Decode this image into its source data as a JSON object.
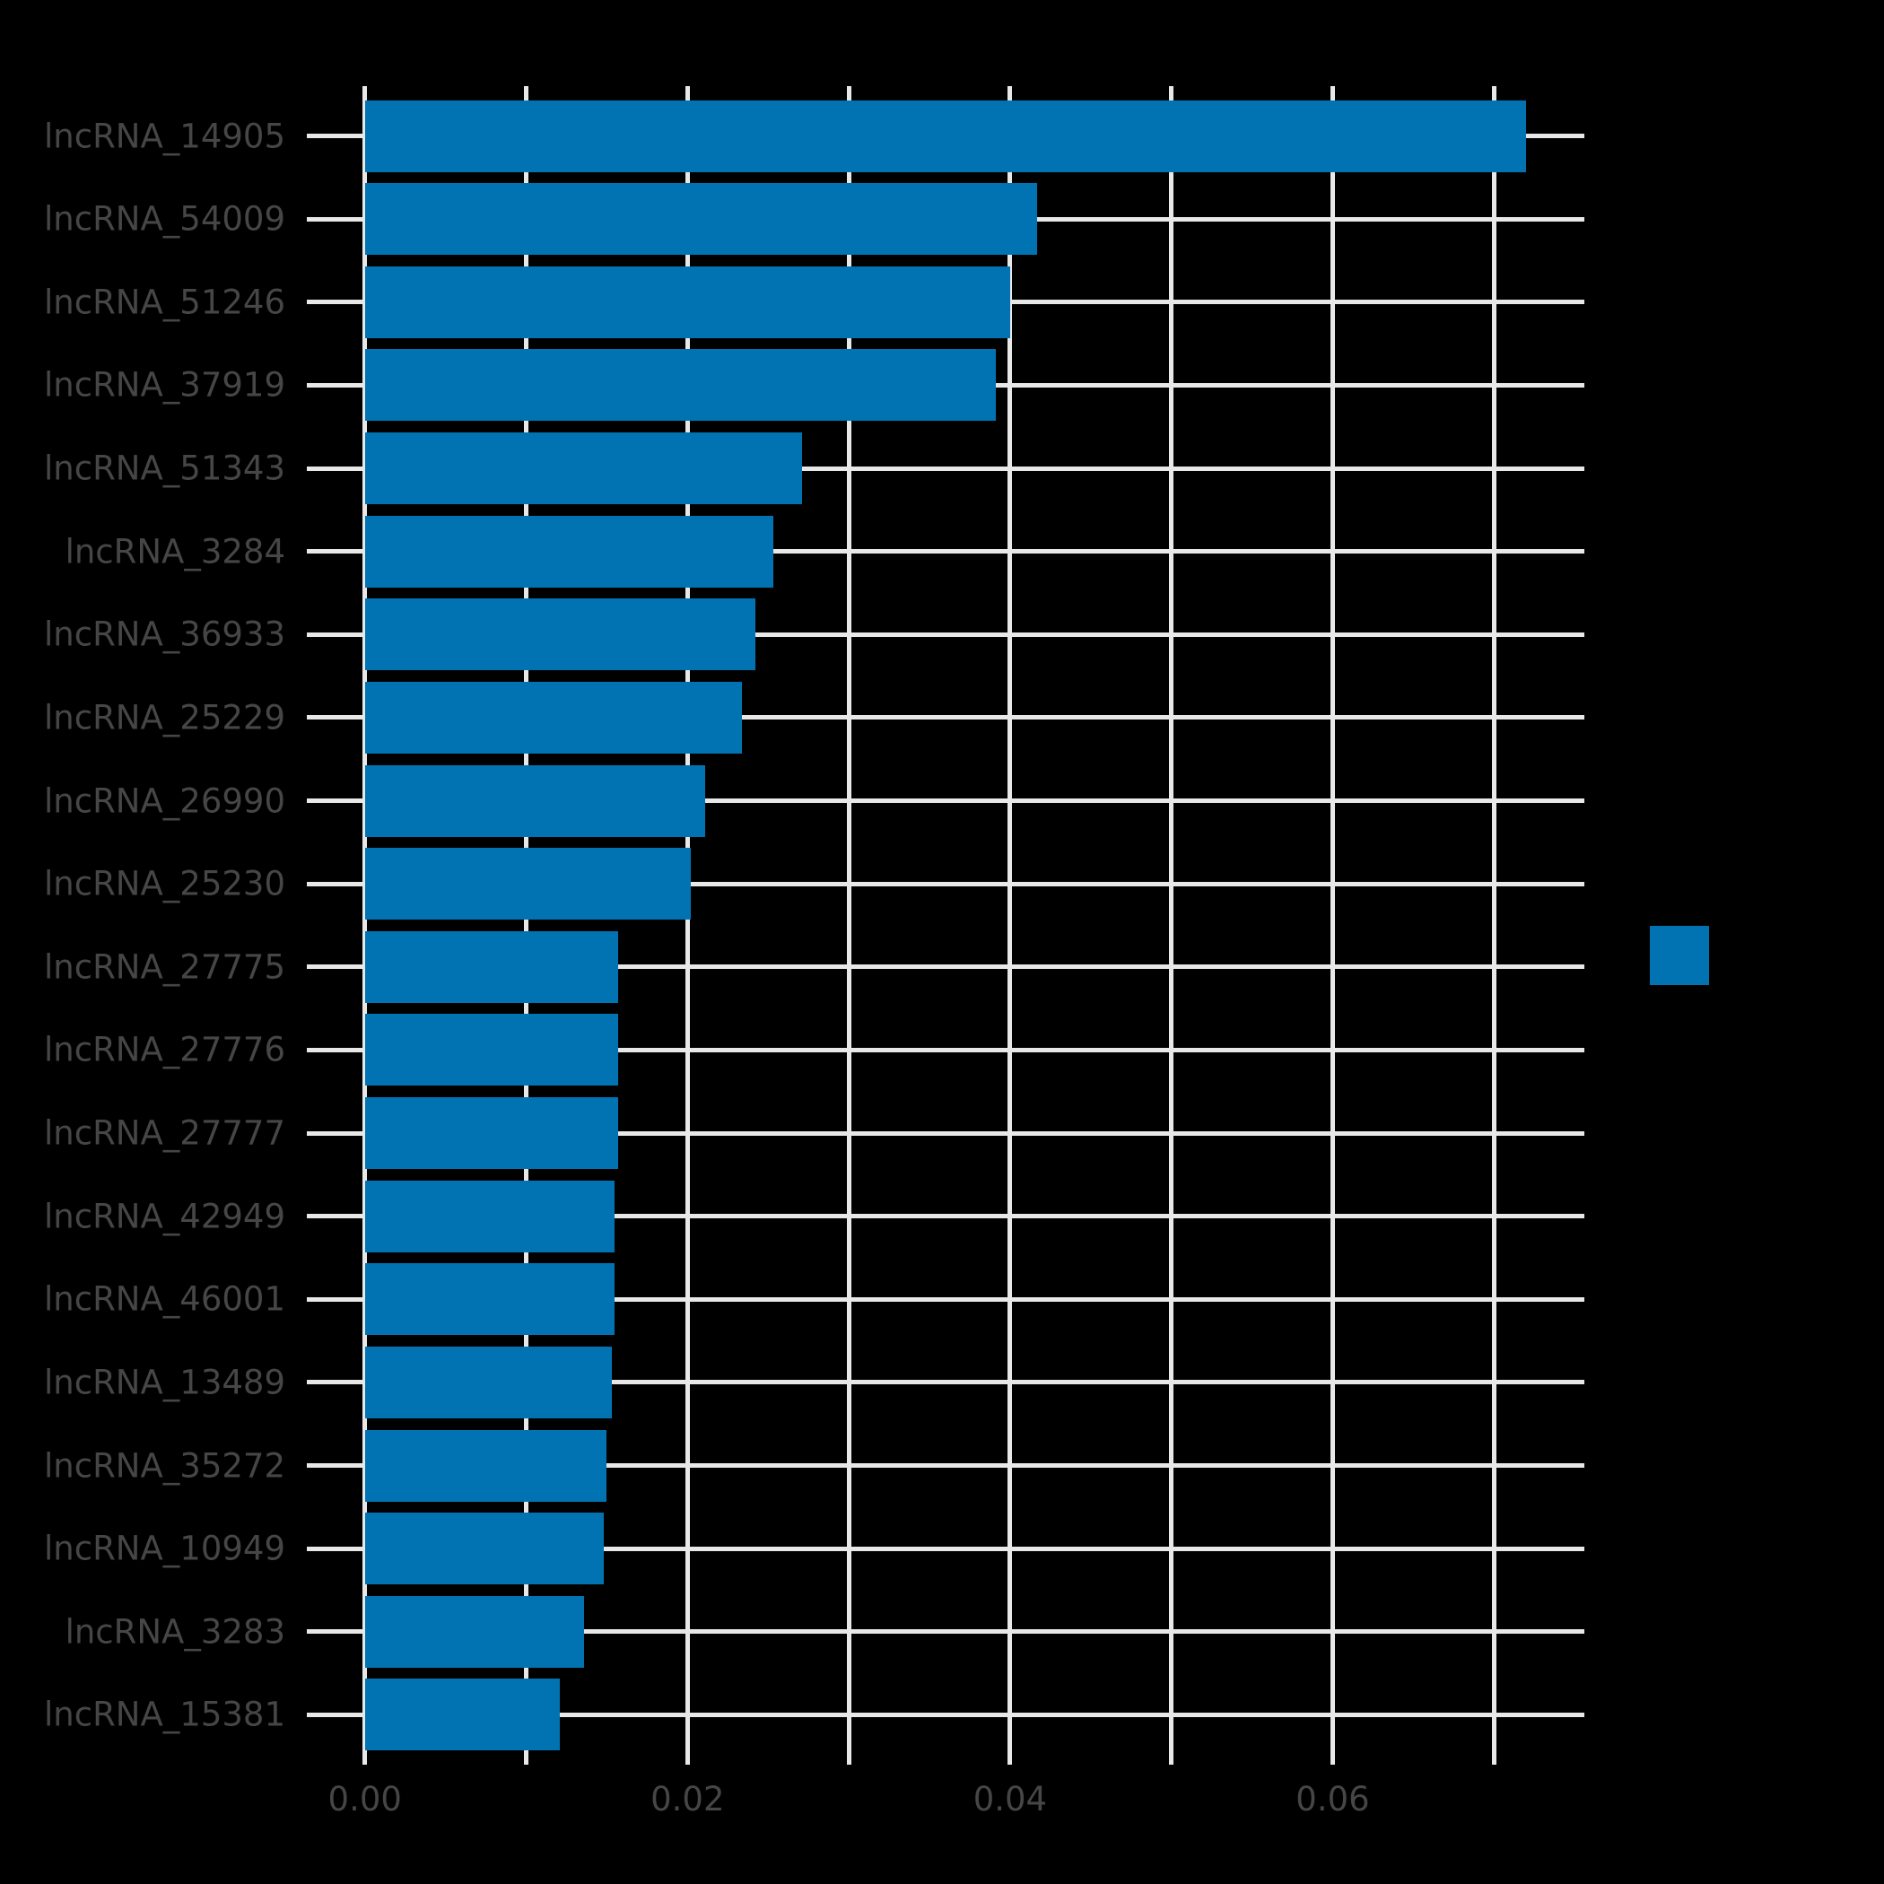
{
  "chart_data": {
    "type": "bar",
    "orientation": "horizontal",
    "title": "",
    "xlabel": "",
    "ylabel": "",
    "categories": [
      "lncRNA_14905",
      "lncRNA_54009",
      "lncRNA_51246",
      "lncRNA_37919",
      "lncRNA_51343",
      "lncRNA_3284",
      "lncRNA_36933",
      "lncRNA_25229",
      "lncRNA_26990",
      "lncRNA_25230",
      "lncRNA_27775",
      "lncRNA_27776",
      "lncRNA_27777",
      "lncRNA_42949",
      "lncRNA_46001",
      "lncRNA_13489",
      "lncRNA_35272",
      "lncRNA_10949",
      "lncRNA_3283",
      "lncRNA_15381"
    ],
    "values": [
      0.072,
      0.0417,
      0.04,
      0.0391,
      0.0271,
      0.0253,
      0.0242,
      0.0234,
      0.0211,
      0.0202,
      0.0157,
      0.0157,
      0.0157,
      0.0155,
      0.0155,
      0.0153,
      0.015,
      0.0148,
      0.0136,
      0.0121
    ],
    "xlim": [
      -0.0036,
      0.0756
    ],
    "ylim_pad_rows": 0.6,
    "grid": true,
    "gridline_step": 0.01,
    "xtick_labels": [
      "0.00",
      "0.02",
      "0.04",
      "0.06"
    ],
    "xtick_values": [
      0.0,
      0.02,
      0.04,
      0.06
    ],
    "legend": {
      "position": "right",
      "label": "",
      "swatch_color": "#0173b2"
    },
    "colors": {
      "background": "#000000",
      "bar": "#0173b2",
      "grid": "#e8e8e8",
      "tick_label": "#464646"
    }
  }
}
